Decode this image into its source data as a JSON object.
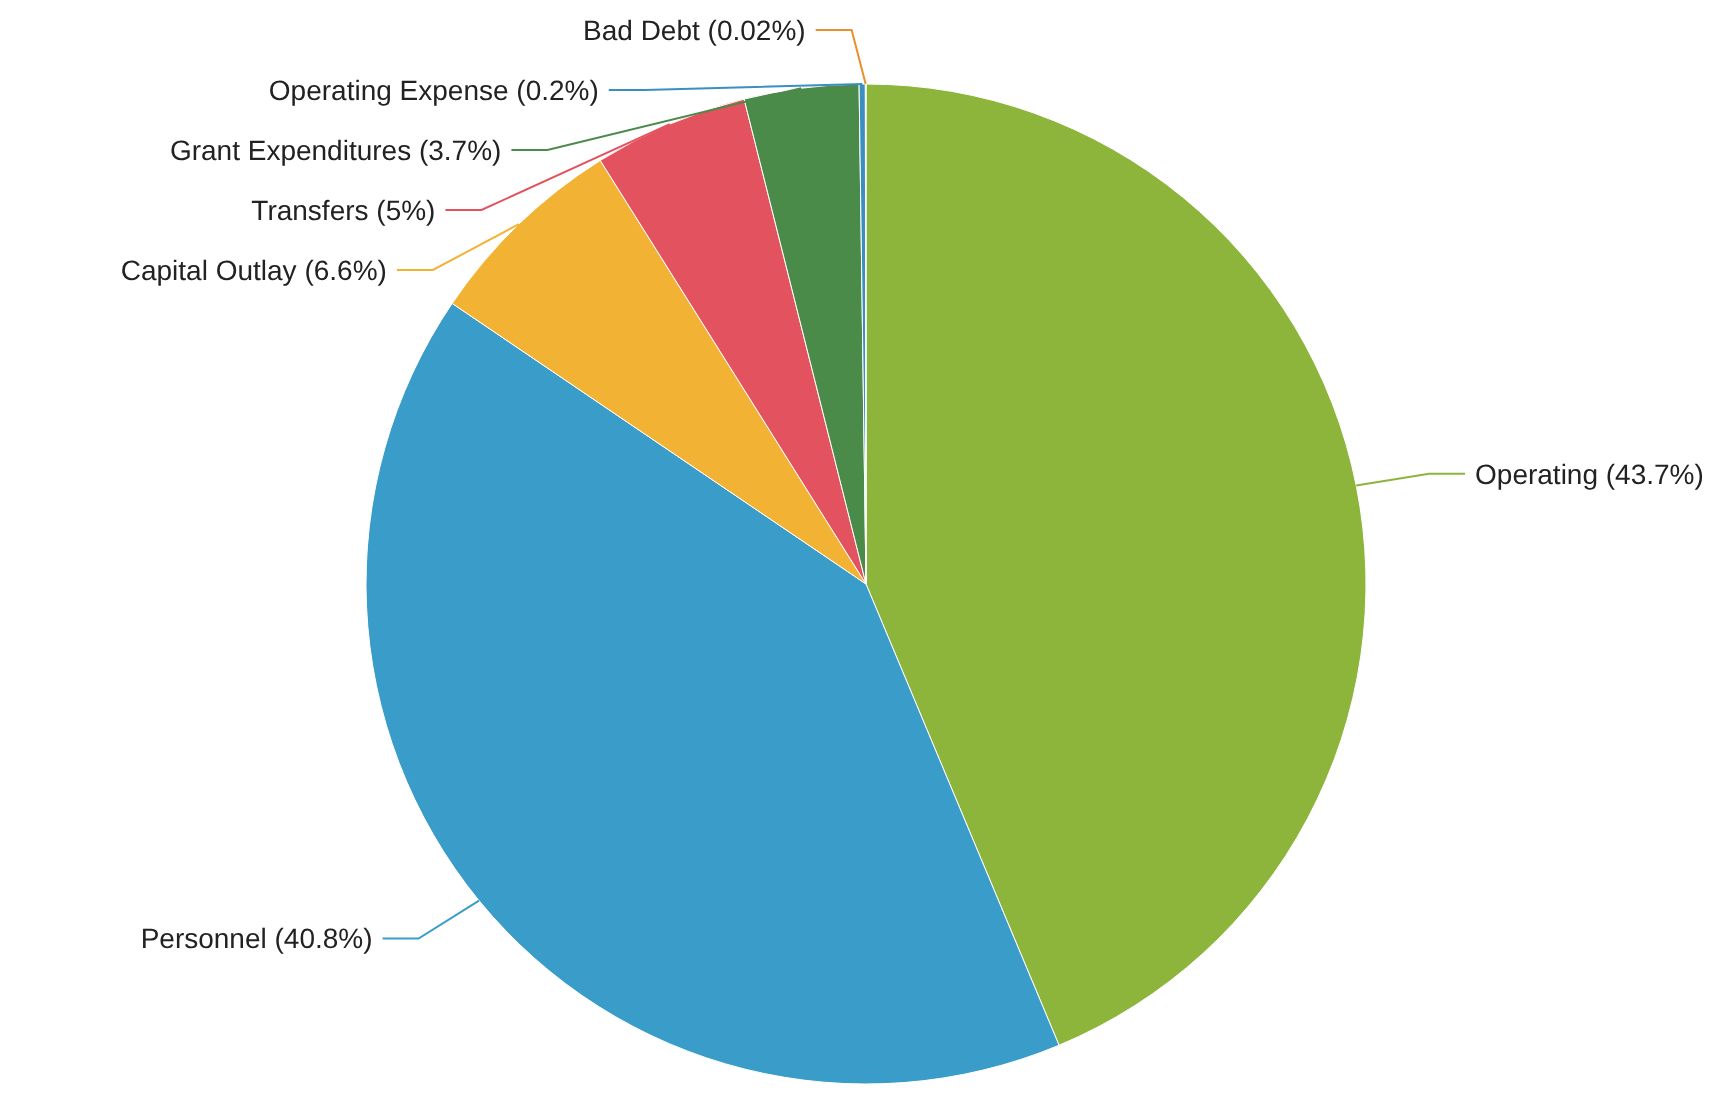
{
  "chart_data": {
    "type": "pie",
    "categories": [
      "Operating (43.7%)",
      "Personnel (40.8%)",
      "Capital Outlay (6.6%)",
      "Transfers (5%)",
      "Grant Expenditures (3.7%)",
      "Operating Expense (0.2%)",
      "Bad Debt (0.02%)"
    ],
    "values": [
      43.7,
      40.8,
      6.6,
      5,
      3.7,
      0.2,
      0.02
    ],
    "colors": [
      "#8db53c",
      "#3a9dc9",
      "#f2b233",
      "#e3525f",
      "#4b8b4a",
      "#3a8fc0",
      "#e8902a"
    ]
  }
}
